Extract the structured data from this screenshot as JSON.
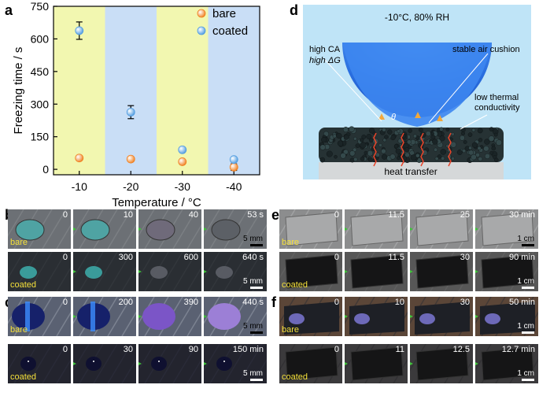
{
  "panel_a": {
    "label": "a",
    "chart_data": {
      "type": "scatter",
      "xlabel": "Temperature / °C",
      "ylabel": "Freezing time / s",
      "categories": [
        "-10",
        "-20",
        "-30",
        "-40"
      ],
      "ylim": [
        -25,
        750
      ],
      "yticks": [
        0,
        150,
        300,
        450,
        600,
        750
      ],
      "background_bands": [
        "#f2f7b0",
        "#c9def6",
        "#f2f7b0",
        "#c9def6"
      ],
      "series": [
        {
          "name": "bare",
          "color": "#f07f1e",
          "values": [
            52,
            47,
            35,
            10
          ],
          "errors": [
            8,
            6,
            10,
            15
          ]
        },
        {
          "name": "coated",
          "color": "#4f9be0",
          "values": [
            638,
            263,
            90,
            45
          ],
          "errors": [
            40,
            30,
            8,
            5
          ]
        }
      ]
    }
  },
  "panel_d": {
    "label": "d",
    "condition": "-10°C, 80% RH",
    "labels": {
      "high_ca": "high CA",
      "high_dg": "high ΔG",
      "air_cushion": "stable air cushion",
      "low_thermal_1": "low thermal",
      "low_thermal_2": "conductivity",
      "theta": "θ",
      "heat": "heat transfer"
    }
  },
  "panel_b": {
    "label": "b",
    "row1": {
      "sample": "bare",
      "times": [
        "0",
        "10",
        "40",
        "53 s"
      ],
      "scale": "5 mm"
    },
    "row2": {
      "sample": "coated",
      "times": [
        "0",
        "300",
        "600",
        "640 s"
      ],
      "scale": "5 mm"
    }
  },
  "panel_c": {
    "label": "c",
    "row1": {
      "sample": "bare",
      "times": [
        "0",
        "200",
        "390",
        "440 s"
      ],
      "scale": "5 mm"
    },
    "row2": {
      "sample": "coated",
      "times": [
        "0",
        "30",
        "90",
        "150 min"
      ],
      "scale": "5 mm"
    }
  },
  "panel_e": {
    "label": "e",
    "row1": {
      "sample": "bare",
      "times": [
        "0",
        "11.5",
        "25",
        "30 min"
      ],
      "scale": "1 cm"
    },
    "row2": {
      "sample": "coated",
      "times": [
        "0",
        "11.5",
        "30",
        "90 min"
      ],
      "scale": "1 cm"
    }
  },
  "panel_f": {
    "label": "f",
    "row1": {
      "sample": "bare",
      "times": [
        "0",
        "10",
        "30",
        "50 min"
      ],
      "scale": "1 cm"
    },
    "row2": {
      "sample": "coated",
      "times": [
        "0",
        "11",
        "12.5",
        "12.7 min"
      ],
      "scale": "1 cm"
    }
  },
  "colors": {
    "arrow": "#3fc33a",
    "sample_label": "#f4e03a"
  }
}
